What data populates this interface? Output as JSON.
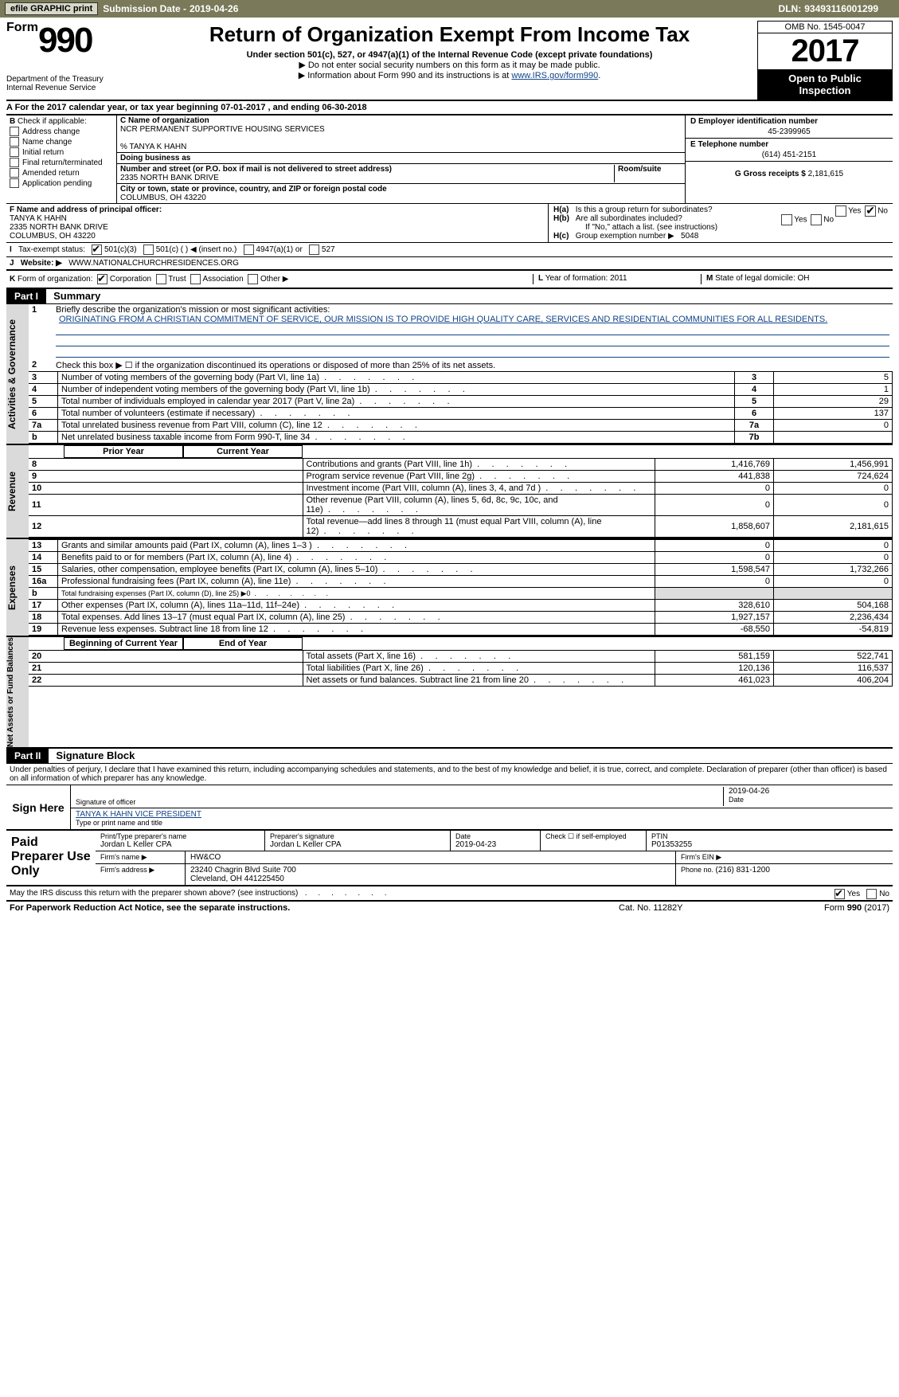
{
  "topbar": {
    "efile_label": "efile GRAPHIC print",
    "submission_label": "Submission Date - ",
    "submission_date": "2019-04-26",
    "dln_label": "DLN: ",
    "dln": "93493116001299"
  },
  "header": {
    "form_word": "Form",
    "form_num": "990",
    "dept1": "Department of the Treasury",
    "dept2": "Internal Revenue Service",
    "title": "Return of Organization Exempt From Income Tax",
    "sub1": "Under section 501(c), 527, or 4947(a)(1) of the Internal Revenue Code (except private foundations)",
    "sub2a": "▶ Do not enter social security numbers on this form as it may be made public.",
    "sub2b_pre": "▶ Information about Form 990 and its instructions is at ",
    "sub2b_link": "www.IRS.gov/form990",
    "omb": "OMB No. 1545-0047",
    "year": "2017",
    "open1": "Open to Public",
    "open2": "Inspection"
  },
  "rowA": "A  For the 2017 calendar year, or tax year beginning 07-01-2017     , and ending 06-30-2018",
  "boxB": {
    "label": "B",
    "note": "Check if applicable:",
    "items": [
      "Address change",
      "Name change",
      "Initial return",
      "Final return/terminated",
      "Amended return",
      "Application pending"
    ]
  },
  "boxC": {
    "name_label": "C Name of organization",
    "name": "NCR PERMANENT SUPPORTIVE HOUSING SERVICES",
    "care_of": "% TANYA K HAHN",
    "dba_label": "Doing business as",
    "addr_label": "Number and street (or P.O. box if mail is not delivered to street address)",
    "addr": "2335 NORTH BANK DRIVE",
    "room_label": "Room/suite",
    "city_label": "City or town, state or province, country, and ZIP or foreign postal code",
    "city": "COLUMBUS, OH  43220"
  },
  "boxD": {
    "ein_label": "D Employer identification number",
    "ein": "45-2399965",
    "tel_label": "E Telephone number",
    "tel": "(614) 451-2151",
    "gross_label": "G Gross receipts $ ",
    "gross": "2,181,615"
  },
  "boxF": {
    "label": "F  Name and address of principal officer:",
    "name": "TANYA K HAHN",
    "addr1": "2335 NORTH BANK DRIVE",
    "addr2": "COLUMBUS, OH  43220"
  },
  "boxH": {
    "a_label": "H(a)",
    "a_text": "Is this a group return for subordinates?",
    "b_label": "H(b)",
    "b_text": "Are all subordinates included?",
    "b_note": "If \"No,\" attach a list. (see instructions)",
    "c_label": "H(c)",
    "c_text": "Group exemption number ▶",
    "c_val": "5048",
    "yes": "Yes",
    "no": "No"
  },
  "rowI": {
    "label": "I",
    "text": "Tax-exempt status:",
    "opts": [
      "501(c)(3)",
      "501(c) (  ) ◀ (insert no.)",
      "4947(a)(1) or",
      "527"
    ]
  },
  "rowJ": {
    "label": "J",
    "text": "Website: ▶",
    "val": "WWW.NATIONALCHURCHRESIDENCES.ORG"
  },
  "rowK": {
    "label": "K",
    "text": "Form of organization:",
    "opts": [
      "Corporation",
      "Trust",
      "Association",
      "Other ▶"
    ],
    "L_label": "L",
    "L_text": "Year of formation: ",
    "L_val": "2011",
    "M_label": "M",
    "M_text": "State of legal domicile: ",
    "M_val": "OH"
  },
  "partI": {
    "part": "Part I",
    "title": "Summary",
    "sidebar1": "Activities & Governance",
    "line1_num": "1",
    "line1_txt": "Briefly describe the organization's mission or most significant activities:",
    "mission": "ORIGINATING FROM A CHRISTIAN COMMITMENT OF SERVICE, OUR MISSION IS TO PROVIDE HIGH QUALITY CARE, SERVICES AND RESIDENTIAL COMMUNITIES FOR ALL RESIDENTS.",
    "line2_num": "2",
    "line2_txt": "Check this box ▶ ☐ if the organization discontinued its operations or disposed of more than 25% of its net assets.",
    "rows": [
      {
        "n": "3",
        "t": "Number of voting members of the governing body (Part VI, line 1a)",
        "b": "3",
        "v": "5"
      },
      {
        "n": "4",
        "t": "Number of independent voting members of the governing body (Part VI, line 1b)",
        "b": "4",
        "v": "1"
      },
      {
        "n": "5",
        "t": "Total number of individuals employed in calendar year 2017 (Part V, line 2a)",
        "b": "5",
        "v": "29"
      },
      {
        "n": "6",
        "t": "Total number of volunteers (estimate if necessary)",
        "b": "6",
        "v": "137"
      },
      {
        "n": "7a",
        "t": "Total unrelated business revenue from Part VIII, column (C), line 12",
        "b": "7a",
        "v": "0"
      },
      {
        "n": "b",
        "t": "Net unrelated business taxable income from Form 990-T, line 34",
        "b": "7b",
        "v": ""
      }
    ],
    "sidebar2": "Revenue",
    "col_prior": "Prior Year",
    "col_current": "Current Year",
    "revenue": [
      {
        "n": "8",
        "t": "Contributions and grants (Part VIII, line 1h)",
        "p": "1,416,769",
        "c": "1,456,991"
      },
      {
        "n": "9",
        "t": "Program service revenue (Part VIII, line 2g)",
        "p": "441,838",
        "c": "724,624"
      },
      {
        "n": "10",
        "t": "Investment income (Part VIII, column (A), lines 3, 4, and 7d )",
        "p": "0",
        "c": "0"
      },
      {
        "n": "11",
        "t": "Other revenue (Part VIII, column (A), lines 5, 6d, 8c, 9c, 10c, and 11e)",
        "p": "0",
        "c": "0"
      },
      {
        "n": "12",
        "t": "Total revenue—add lines 8 through 11 (must equal Part VIII, column (A), line 12)",
        "p": "1,858,607",
        "c": "2,181,615"
      }
    ],
    "sidebar3": "Expenses",
    "expenses": [
      {
        "n": "13",
        "t": "Grants and similar amounts paid (Part IX, column (A), lines 1–3 )",
        "p": "0",
        "c": "0"
      },
      {
        "n": "14",
        "t": "Benefits paid to or for members (Part IX, column (A), line 4)",
        "p": "0",
        "c": "0"
      },
      {
        "n": "15",
        "t": "Salaries, other compensation, employee benefits (Part IX, column (A), lines 5–10)",
        "p": "1,598,547",
        "c": "1,732,266"
      },
      {
        "n": "16a",
        "t": "Professional fundraising fees (Part IX, column (A), line 11e)",
        "p": "0",
        "c": "0"
      },
      {
        "n": "b",
        "t": "Total fundraising expenses (Part IX, column (D), line 25) ▶0",
        "p": "",
        "c": "",
        "shade": true,
        "small": true
      },
      {
        "n": "17",
        "t": "Other expenses (Part IX, column (A), lines 11a–11d, 11f–24e)",
        "p": "328,610",
        "c": "504,168"
      },
      {
        "n": "18",
        "t": "Total expenses. Add lines 13–17 (must equal Part IX, column (A), line 25)",
        "p": "1,927,157",
        "c": "2,236,434"
      },
      {
        "n": "19",
        "t": "Revenue less expenses. Subtract line 18 from line 12",
        "p": "-68,550",
        "c": "-54,819"
      }
    ],
    "sidebar4": "Net Assets or Fund Balances",
    "col_begin": "Beginning of Current Year",
    "col_end": "End of Year",
    "netassets": [
      {
        "n": "20",
        "t": "Total assets (Part X, line 16)",
        "p": "581,159",
        "c": "522,741"
      },
      {
        "n": "21",
        "t": "Total liabilities (Part X, line 26)",
        "p": "120,136",
        "c": "116,537"
      },
      {
        "n": "22",
        "t": "Net assets or fund balances. Subtract line 21 from line 20",
        "p": "461,023",
        "c": "406,204"
      }
    ]
  },
  "partII": {
    "part": "Part II",
    "title": "Signature Block",
    "jurat": "Under penalties of perjury, I declare that I have examined this return, including accompanying schedules and statements, and to the best of my knowledge and belief, it is true, correct, and complete. Declaration of preparer (other than officer) is based on all information of which preparer has any knowledge.",
    "sign_here": "Sign Here",
    "sig_officer_lab": "Signature of officer",
    "sig_date": "2019-04-26",
    "date_lab": "Date",
    "officer_name": "TANYA K HAHN  VICE PRESIDENT",
    "officer_name_lab": "Type or print name and title",
    "paid": "Paid Preparer Use Only",
    "prep_name_lab": "Print/Type preparer's name",
    "prep_name": "Jordan L Keller CPA",
    "prep_sig_lab": "Preparer's signature",
    "prep_sig": "Jordan L Keller CPA",
    "prep_date_lab": "Date",
    "prep_date": "2019-04-23",
    "self_emp_lab": "Check ☐ if self-employed",
    "ptin_lab": "PTIN",
    "ptin": "P01353255",
    "firm_name_lab": "Firm's name    ▶",
    "firm_name": "HW&CO",
    "firm_ein_lab": "Firm's EIN ▶",
    "firm_addr_lab": "Firm's address ▶",
    "firm_addr1": "23240 Chagrin Blvd Suite 700",
    "firm_addr2": "Cleveland, OH  441225450",
    "firm_phone_lab": "Phone no. ",
    "firm_phone": "(216) 831-1200",
    "may_irs": "May the IRS discuss this return with the preparer shown above? (see instructions)",
    "yes": "Yes",
    "no": "No"
  },
  "footer": {
    "left": "For Paperwork Reduction Act Notice, see the separate instructions.",
    "mid": "Cat. No. 11282Y",
    "right_pre": "Form ",
    "right_form": "990",
    "right_post": " (2017)"
  }
}
